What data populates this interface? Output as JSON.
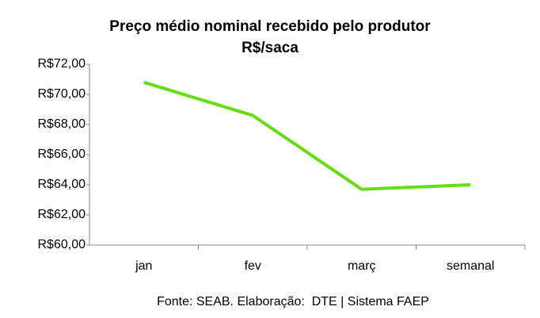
{
  "chart_data": {
    "type": "line",
    "title": "Preço médio nominal recebido pelo produtor",
    "subtitle": "R$/saca",
    "categories": [
      "jan",
      "fev",
      "març",
      "semanal"
    ],
    "series": [
      {
        "name": "Preço médio",
        "color": "#66dd11",
        "values": [
          70.8,
          68.6,
          63.7,
          64.0
        ]
      }
    ],
    "ylim": [
      60,
      72
    ],
    "yticks": [
      {
        "value": 60,
        "label": "R$60,00"
      },
      {
        "value": 62,
        "label": "R$62,00"
      },
      {
        "value": 64,
        "label": "R$64,00"
      },
      {
        "value": 66,
        "label": "R$66,00"
      },
      {
        "value": 68,
        "label": "R$68,00"
      },
      {
        "value": 70,
        "label": "R$70,00"
      },
      {
        "value": 72,
        "label": "R$72,00"
      }
    ],
    "grid": false,
    "source": "Fonte: SEAB. Elaboração:  DTE | Sistema FAEP"
  }
}
